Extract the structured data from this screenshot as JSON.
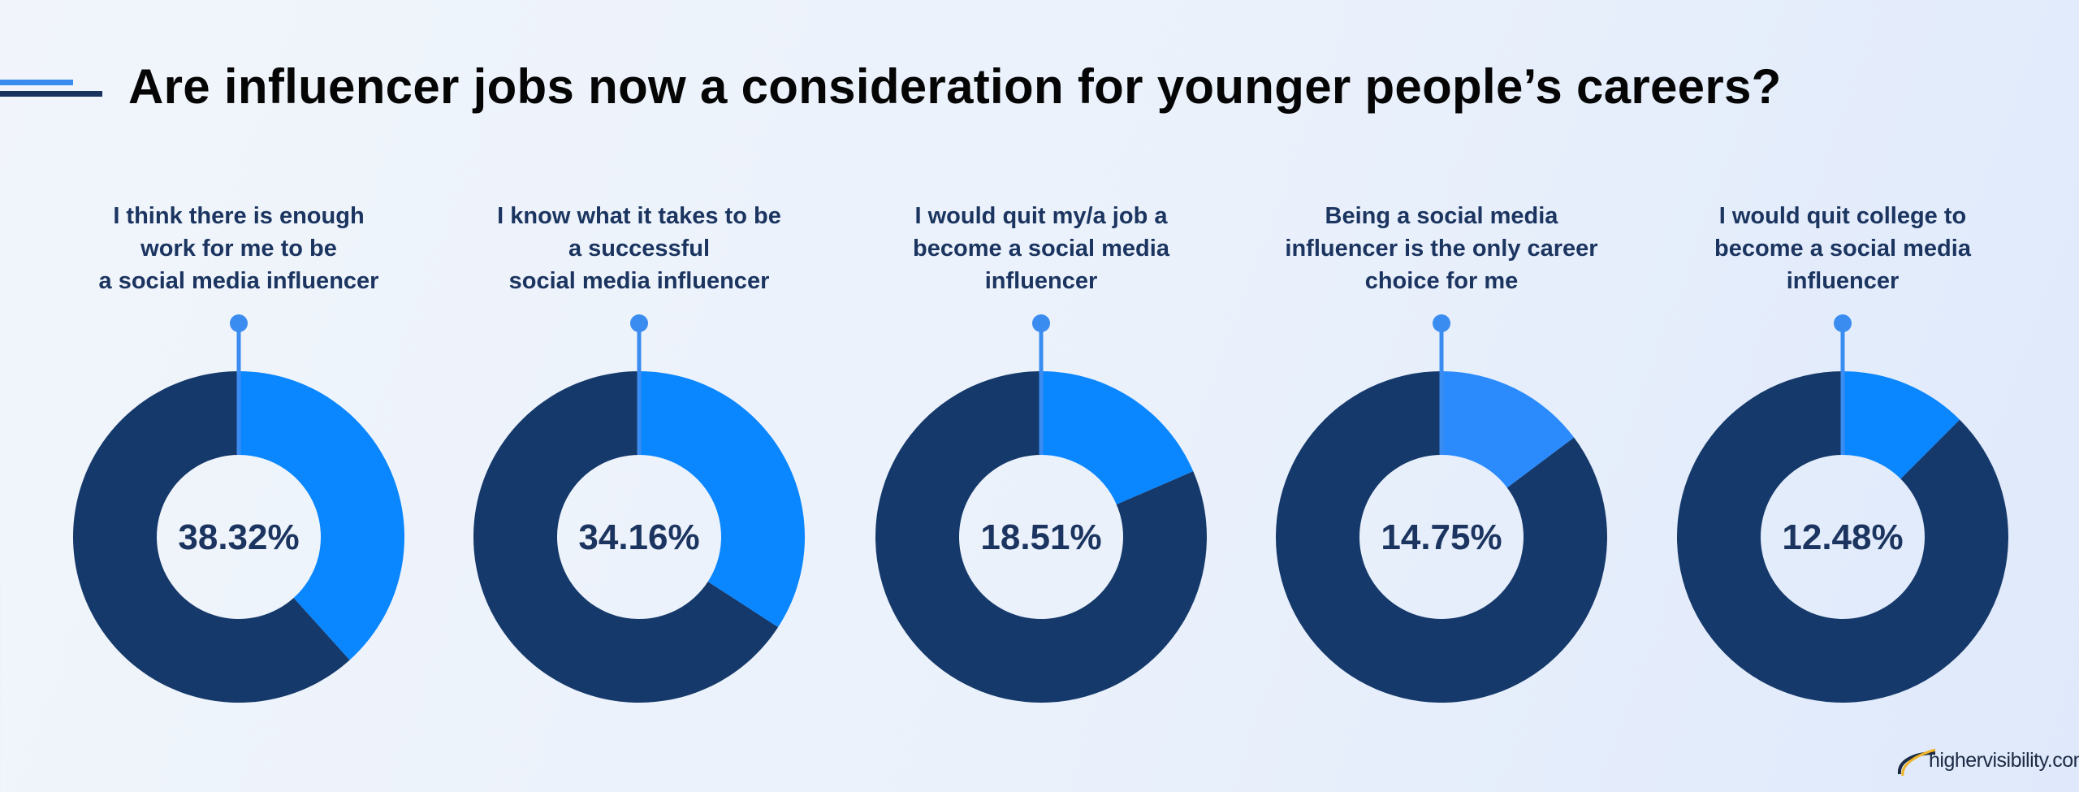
{
  "title": "Are influencer jobs now a consideration for younger people’s careers?",
  "logo_text": "highervisibility.com",
  "colors": {
    "remainder": "#15396a",
    "highlight": "#0a86ff",
    "highlight_alt": "#2b8bfd",
    "pin": "#3b8cf0",
    "text": "#1b3560"
  },
  "chart_data": [
    {
      "type": "pie",
      "label": "I think there is enough work for me to be a social media influencer",
      "label_lines": [
        "I think there is enough",
        "work for me to be",
        "a social media influencer"
      ],
      "value": 38.32,
      "value_label": "38.32%"
    },
    {
      "type": "pie",
      "label": "I know what it takes to be a successful social media influencer",
      "label_lines": [
        "I know what it takes to be",
        "a successful",
        "social media influencer"
      ],
      "value": 34.16,
      "value_label": "34.16%"
    },
    {
      "type": "pie",
      "label": "I would quit my/a job a become a social media influencer",
      "label_lines": [
        "I would quit my/a job a",
        "become a social media",
        "influencer"
      ],
      "value": 18.51,
      "value_label": "18.51%"
    },
    {
      "type": "pie",
      "label": "Being a social media influencer is the only career choice for me",
      "label_lines": [
        "Being a social media",
        "influencer is the only career",
        "choice for me"
      ],
      "value": 14.75,
      "value_label": "14.75%"
    },
    {
      "type": "pie",
      "label": "I would quit college to become a social media influencer",
      "label_lines": [
        "I would quit college to",
        "become a social media",
        "influencer"
      ],
      "value": 12.48,
      "value_label": "12.48%"
    }
  ]
}
